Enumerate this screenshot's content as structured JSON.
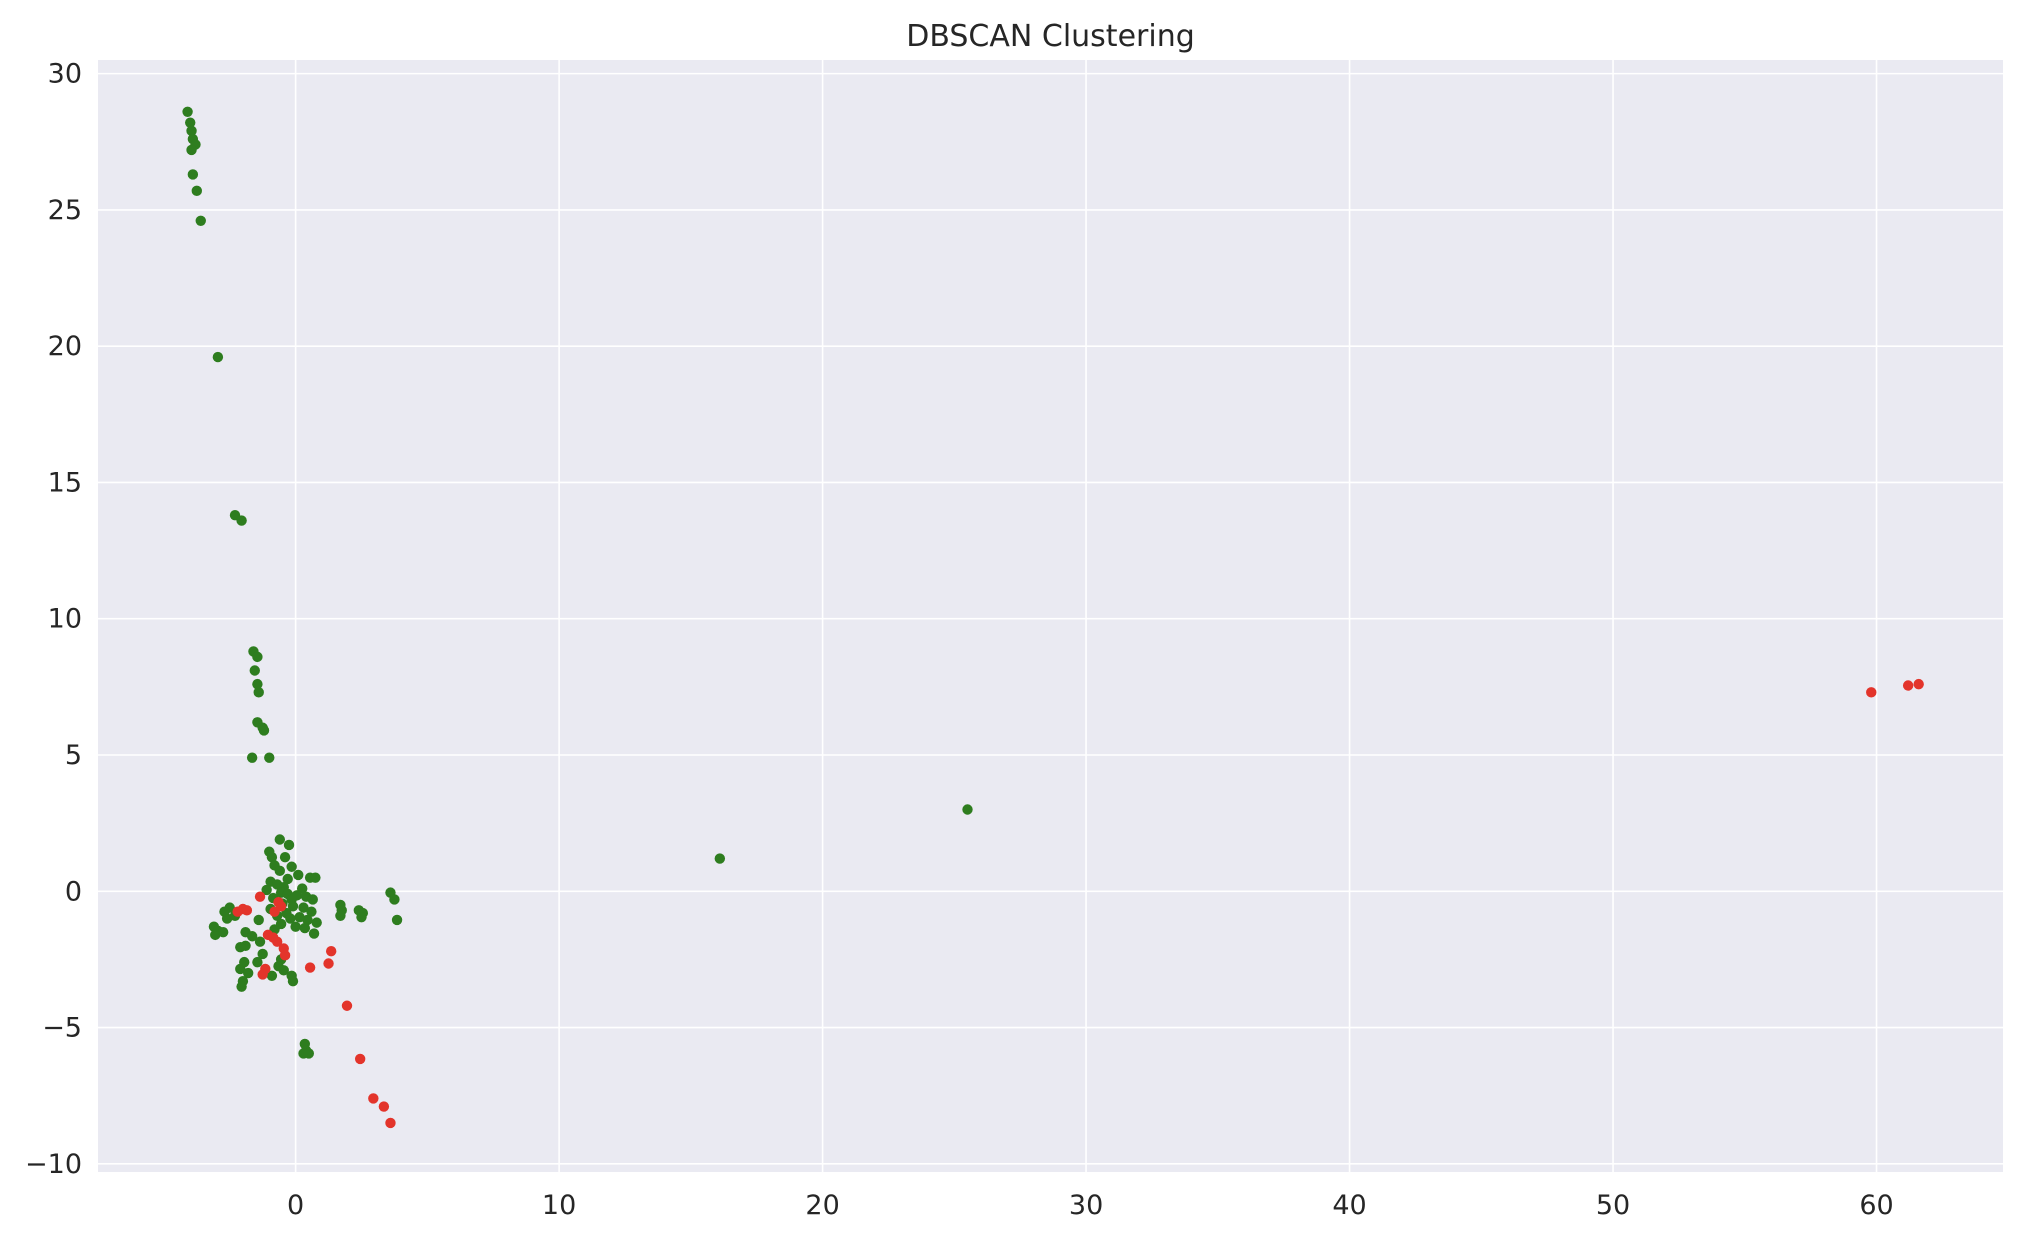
{
  "chart_data": {
    "type": "scatter",
    "title": "DBSCAN Clustering",
    "xlabel": "",
    "ylabel": "",
    "xlim": [
      -7.5,
      64.8
    ],
    "ylim": [
      -10.3,
      30.5
    ],
    "xticks": [
      0,
      10,
      20,
      30,
      40,
      50,
      60
    ],
    "yticks": [
      -10,
      -5,
      0,
      5,
      10,
      15,
      20,
      25,
      30
    ],
    "xtick_labels": [
      "0",
      "10",
      "20",
      "30",
      "40",
      "50",
      "60"
    ],
    "ytick_labels": [
      "−10",
      "−5",
      "0",
      "5",
      "10",
      "15",
      "20",
      "25",
      "30"
    ],
    "grid": true,
    "background_color": "#eaeaf2",
    "series": [
      {
        "color": "#2e7d1f",
        "points": [
          [
            -4.1,
            28.6
          ],
          [
            -4.0,
            28.2
          ],
          [
            -3.95,
            27.9
          ],
          [
            -3.9,
            27.6
          ],
          [
            -3.8,
            27.4
          ],
          [
            -3.95,
            27.2
          ],
          [
            -3.9,
            26.3
          ],
          [
            -3.75,
            25.7
          ],
          [
            -3.6,
            24.6
          ],
          [
            -2.95,
            19.6
          ],
          [
            -2.3,
            13.8
          ],
          [
            -2.05,
            13.6
          ],
          [
            -1.6,
            8.8
          ],
          [
            -1.45,
            8.6
          ],
          [
            -1.55,
            8.1
          ],
          [
            -1.45,
            7.6
          ],
          [
            -1.4,
            7.3
          ],
          [
            -1.45,
            6.2
          ],
          [
            -1.25,
            6.0
          ],
          [
            -1.2,
            5.9
          ],
          [
            -1.65,
            4.9
          ],
          [
            -1.0,
            4.9
          ],
          [
            -0.6,
            1.9
          ],
          [
            -0.25,
            1.7
          ],
          [
            -1.0,
            1.45
          ],
          [
            -0.9,
            1.25
          ],
          [
            -0.4,
            1.25
          ],
          [
            -0.8,
            0.95
          ],
          [
            -0.15,
            0.9
          ],
          [
            -0.6,
            0.75
          ],
          [
            0.1,
            0.6
          ],
          [
            0.55,
            0.5
          ],
          [
            0.75,
            0.5
          ],
          [
            -0.3,
            0.45
          ],
          [
            -0.95,
            0.35
          ],
          [
            -0.7,
            0.25
          ],
          [
            -0.45,
            0.15
          ],
          [
            0.25,
            0.1
          ],
          [
            -1.1,
            0.05
          ],
          [
            -0.55,
            -0.05
          ],
          [
            -0.3,
            -0.1
          ],
          [
            0.05,
            -0.15
          ],
          [
            0.4,
            -0.2
          ],
          [
            -0.85,
            -0.25
          ],
          [
            -0.15,
            -0.3
          ],
          [
            0.65,
            -0.3
          ],
          [
            -0.5,
            -0.45
          ],
          [
            -0.1,
            -0.55
          ],
          [
            0.3,
            -0.6
          ],
          [
            -0.95,
            -0.65
          ],
          [
            0.6,
            -0.75
          ],
          [
            -0.35,
            -0.8
          ],
          [
            -0.7,
            -0.9
          ],
          [
            0.15,
            -0.95
          ],
          [
            -0.2,
            -1.0
          ],
          [
            0.45,
            -1.05
          ],
          [
            -1.4,
            -1.05
          ],
          [
            0.8,
            -1.15
          ],
          [
            -0.55,
            -1.2
          ],
          [
            0.0,
            -1.3
          ],
          [
            0.35,
            -1.35
          ],
          [
            -0.8,
            -1.4
          ],
          [
            0.7,
            -1.55
          ],
          [
            -3.1,
            -1.3
          ],
          [
            -2.95,
            -1.45
          ],
          [
            -3.05,
            -1.6
          ],
          [
            -2.75,
            -1.5
          ],
          [
            -2.6,
            -1.0
          ],
          [
            -2.3,
            -0.9
          ],
          [
            -2.5,
            -0.6
          ],
          [
            -2.7,
            -0.75
          ],
          [
            -1.9,
            -1.5
          ],
          [
            -1.65,
            -1.65
          ],
          [
            -1.35,
            -1.85
          ],
          [
            -1.9,
            -2.0
          ],
          [
            -2.1,
            -2.05
          ],
          [
            -1.25,
            -2.3
          ],
          [
            -1.45,
            -2.6
          ],
          [
            -1.95,
            -2.6
          ],
          [
            -2.1,
            -2.85
          ],
          [
            -1.8,
            -3.0
          ],
          [
            -0.9,
            -3.1
          ],
          [
            -2.0,
            -3.3
          ],
          [
            -2.05,
            -3.5
          ],
          [
            -0.55,
            -2.5
          ],
          [
            -0.65,
            -2.75
          ],
          [
            -0.45,
            -2.9
          ],
          [
            -0.15,
            -3.1
          ],
          [
            -0.1,
            -3.3
          ],
          [
            1.7,
            -0.5
          ],
          [
            1.75,
            -0.7
          ],
          [
            1.7,
            -0.9
          ],
          [
            2.4,
            -0.7
          ],
          [
            2.55,
            -0.8
          ],
          [
            2.5,
            -0.95
          ],
          [
            3.6,
            -0.05
          ],
          [
            3.75,
            -0.3
          ],
          [
            3.85,
            -1.05
          ],
          [
            0.35,
            -5.6
          ],
          [
            0.4,
            -5.85
          ],
          [
            0.3,
            -5.95
          ],
          [
            0.5,
            -5.95
          ],
          [
            16.1,
            1.2
          ],
          [
            25.5,
            3.0
          ]
        ]
      },
      {
        "color": "#e3342b",
        "points": [
          [
            -2.0,
            -0.65
          ],
          [
            -1.85,
            -0.7
          ],
          [
            -2.2,
            -0.75
          ],
          [
            -1.35,
            -0.2
          ],
          [
            -0.65,
            -0.4
          ],
          [
            -0.55,
            -0.55
          ],
          [
            -0.8,
            -0.75
          ],
          [
            -1.05,
            -1.6
          ],
          [
            -0.85,
            -1.7
          ],
          [
            -0.7,
            -1.85
          ],
          [
            -0.45,
            -2.1
          ],
          [
            -0.4,
            -2.35
          ],
          [
            -1.15,
            -2.85
          ],
          [
            -1.25,
            -3.05
          ],
          [
            0.55,
            -2.8
          ],
          [
            1.25,
            -2.65
          ],
          [
            1.35,
            -2.2
          ],
          [
            1.95,
            -4.2
          ],
          [
            2.45,
            -6.15
          ],
          [
            2.95,
            -7.6
          ],
          [
            3.35,
            -7.9
          ],
          [
            3.6,
            -8.5
          ],
          [
            59.8,
            7.3
          ],
          [
            61.2,
            7.55
          ],
          [
            61.6,
            7.6
          ]
        ]
      }
    ]
  }
}
